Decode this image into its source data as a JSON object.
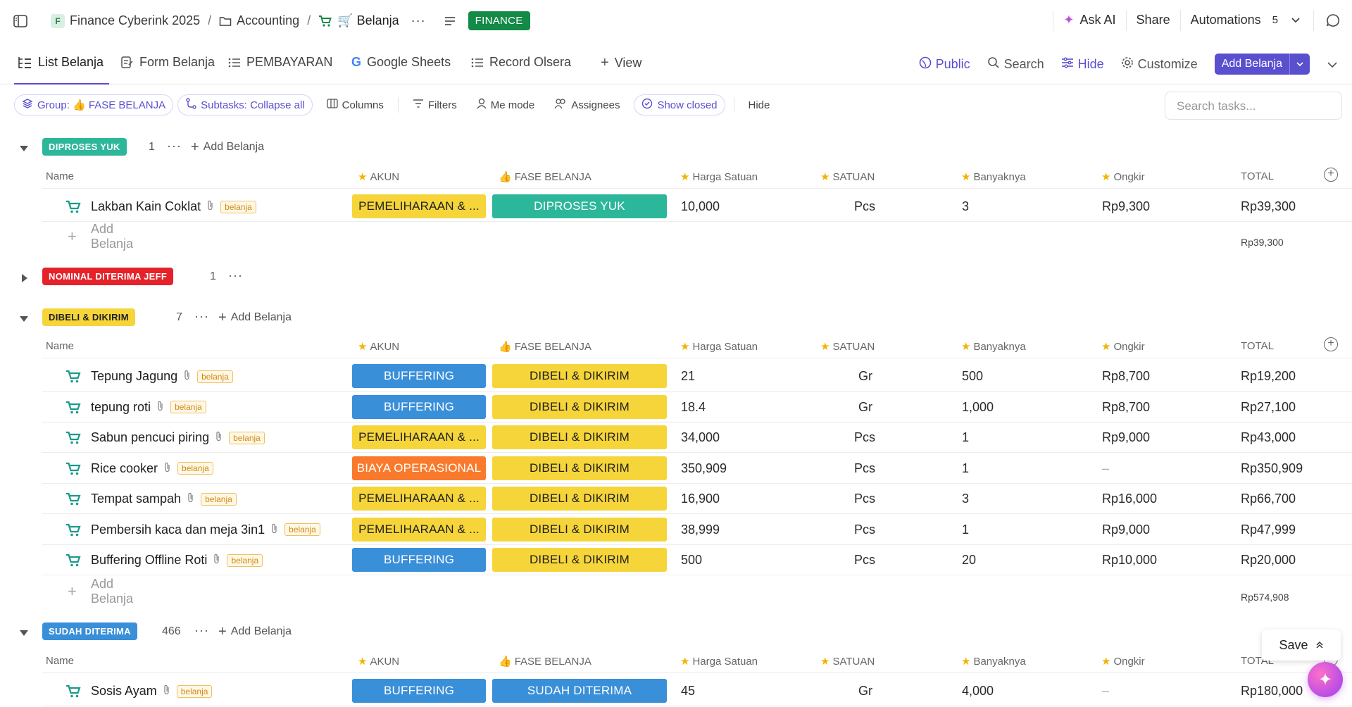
{
  "breadcrumb": {
    "workspace_initial": "F",
    "workspace": "Finance Cyberink 2025",
    "folder": "Accounting",
    "list": "🛒 Belanja",
    "tag": "FINANCE"
  },
  "topbar": {
    "ask_ai": "Ask AI",
    "share": "Share",
    "automations": "Automations",
    "automations_count": "5"
  },
  "tabs": [
    {
      "label": "List Belanja",
      "icon": "list-tree-icon"
    },
    {
      "label": "Form Belanja",
      "icon": "form-icon"
    },
    {
      "label": "PEMBAYARAN",
      "icon": "list-icon"
    },
    {
      "label": "Google Sheets",
      "icon": "google-icon"
    },
    {
      "label": "Record Olsera",
      "icon": "list-icon"
    },
    {
      "label": "View",
      "icon": "plus-icon"
    }
  ],
  "tabs_right": {
    "public": "Public",
    "search": "Search",
    "hide": "Hide",
    "customize": "Customize",
    "add": "Add Belanja"
  },
  "filters": {
    "group": "Group: 👍 FASE BELANJA",
    "subtasks": "Subtasks: Collapse all",
    "columns": "Columns",
    "filters": "Filters",
    "me_mode": "Me mode",
    "assignees": "Assignees",
    "show_closed": "Show closed",
    "hide": "Hide",
    "search_placeholder": "Search tasks..."
  },
  "columns": {
    "name": "Name",
    "akun": "AKUN",
    "fase": "FASE BELANJA",
    "harga": "Harga Satuan",
    "satuan": "SATUAN",
    "banyak": "Banyaknya",
    "ongkir": "Ongkir",
    "total": "TOTAL"
  },
  "tag_label": "belanja",
  "add_belanja": "Add Belanja",
  "groups": [
    {
      "label": "DIPROSES YUK",
      "count": "1",
      "color": "#2db79a",
      "rows": [
        {
          "name": "Lakban Kain Coklat",
          "akun": "PEMELIHARAAN & ...",
          "fase": "DIPROSES YUK",
          "harga": "10,000",
          "satuan": "Pcs",
          "banyak": "3",
          "ongkir": "Rp9,300",
          "total": "Rp39,300"
        }
      ],
      "subtotal": "Rp39,300"
    },
    {
      "label": "NOMINAL DITERIMA JEFF",
      "count": "1",
      "color": "#e5222a"
    },
    {
      "label": "DIBELI & DIKIRIM",
      "count": "7",
      "color": "#f6d53a",
      "rows": [
        {
          "name": "Tepung Jagung",
          "akun": "BUFFERING",
          "fase": "DIBELI & DIKIRIM",
          "harga": "21",
          "satuan": "Gr",
          "banyak": "500",
          "ongkir": "Rp8,700",
          "total": "Rp19,200"
        },
        {
          "name": "tepung roti",
          "akun": "BUFFERING",
          "fase": "DIBELI & DIKIRIM",
          "harga": "18.4",
          "satuan": "Gr",
          "banyak": "1,000",
          "ongkir": "Rp8,700",
          "total": "Rp27,100"
        },
        {
          "name": "Sabun pencuci piring",
          "akun": "PEMELIHARAAN & ...",
          "fase": "DIBELI & DIKIRIM",
          "harga": "34,000",
          "satuan": "Pcs",
          "banyak": "1",
          "ongkir": "Rp9,000",
          "total": "Rp43,000"
        },
        {
          "name": "Rice cooker",
          "akun": "BIAYA OPERASIONAL",
          "fase": "DIBELI & DIKIRIM",
          "harga": "350,909",
          "satuan": "Pcs",
          "banyak": "1",
          "ongkir": "–",
          "total": "Rp350,909"
        },
        {
          "name": "Tempat sampah",
          "akun": "PEMELIHARAAN & ...",
          "fase": "DIBELI & DIKIRIM",
          "harga": "16,900",
          "satuan": "Pcs",
          "banyak": "3",
          "ongkir": "Rp16,000",
          "total": "Rp66,700"
        },
        {
          "name": "Pembersih kaca dan meja 3in1",
          "akun": "PEMELIHARAAN & ...",
          "fase": "DIBELI & DIKIRIM",
          "harga": "38,999",
          "satuan": "Pcs",
          "banyak": "1",
          "ongkir": "Rp9,000",
          "total": "Rp47,999"
        },
        {
          "name": "Buffering Offline Roti",
          "akun": "BUFFERING",
          "fase": "DIBELI & DIKIRIM",
          "harga": "500",
          "satuan": "Pcs",
          "banyak": "20",
          "ongkir": "Rp10,000",
          "total": "Rp20,000"
        }
      ],
      "subtotal": "Rp574,908"
    },
    {
      "label": "SUDAH DITERIMA",
      "count": "466",
      "color": "#3a8fd9",
      "rows": [
        {
          "name": "Sosis Ayam",
          "akun": "BUFFERING",
          "fase": "SUDAH DITERIMA",
          "harga": "45",
          "satuan": "Gr",
          "banyak": "4,000",
          "ongkir": "–",
          "total": "Rp180,000"
        }
      ]
    }
  ],
  "colors": {
    "accent": "#5a4fcf",
    "pemeliharaan": "#f6d53a",
    "buffering": "#3a8fd9",
    "biaya_operasional": "#f97a2c",
    "diproses": "#2db79a",
    "dibeli": "#f6d53a",
    "sudah": "#3a8fd9"
  },
  "save": "Save"
}
